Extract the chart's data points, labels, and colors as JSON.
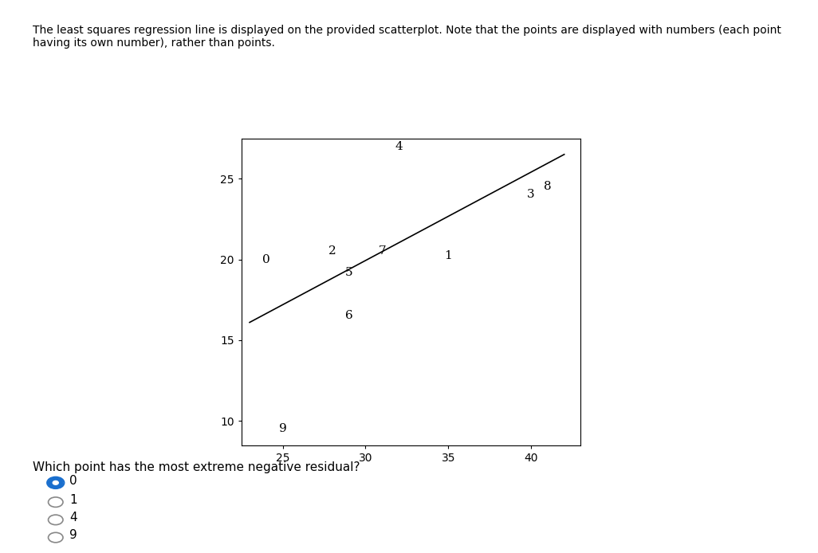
{
  "points": {
    "0": [
      24,
      20.0
    ],
    "1": [
      35,
      20.2
    ],
    "2": [
      28,
      20.5
    ],
    "3": [
      40,
      24.0
    ],
    "4": [
      32,
      27.0
    ],
    "5": [
      29,
      19.2
    ],
    "6": [
      29,
      16.5
    ],
    "7": [
      31,
      20.5
    ],
    "8": [
      41,
      24.5
    ],
    "9": [
      25,
      9.5
    ]
  },
  "reg_line": {
    "x": [
      23,
      42
    ],
    "y": [
      16.1,
      26.5
    ]
  },
  "xlim": [
    22.5,
    43
  ],
  "ylim": [
    8.5,
    27.5
  ],
  "xticks": [
    25,
    30,
    35,
    40
  ],
  "yticks": [
    10,
    15,
    20,
    25
  ],
  "point_color": "#000000",
  "line_color": "#000000",
  "background_color": "#ffffff",
  "text_color": "#000000",
  "font_size": 11,
  "header_text": "The least squares regression line is displayed on the provided scatterplot. Note that the points are displayed with numbers (each point\nhaving its own number), rather than points.",
  "question_text": "Which point has the most extreme negative residual?",
  "option_labels": [
    "0",
    "1",
    "4",
    "9"
  ],
  "selected_option": 0,
  "fig_width": 10.26,
  "fig_height": 6.94,
  "top_bar_color": "#5b9bd5"
}
